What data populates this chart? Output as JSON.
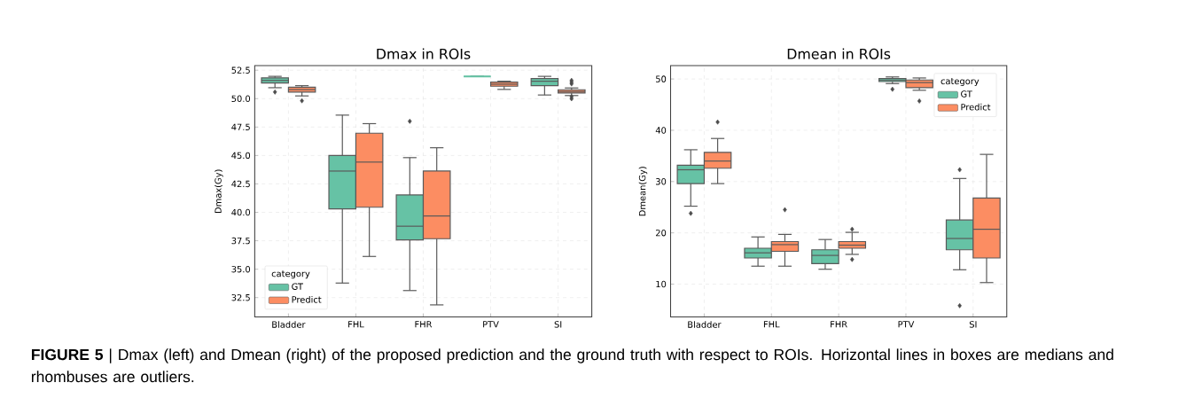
{
  "chart_data": [
    {
      "type": "box",
      "title": "Dmax in ROIs",
      "ylabel": "Dmax(Gy)",
      "categories": [
        "Bladder",
        "FHL",
        "FHR",
        "PTV",
        "SI"
      ],
      "ylim": [
        30.8,
        52.9
      ],
      "yticks": [
        32.5,
        {
          "value": 35,
          "label": "35.0"
        },
        37.5,
        {
          "value": 40,
          "label": "40.0"
        },
        42.5,
        {
          "value": 45,
          "label": "45.0"
        },
        47.5,
        {
          "value": 50,
          "label": "50.0"
        },
        52.5
      ],
      "grid": true,
      "legend": "bottom left",
      "legend_title": "category",
      "series": [
        {
          "name": "GT",
          "color": "#66c2a5",
          "boxes": [
            {
              "low": 50.96,
              "q1": 51.37,
              "median": 51.6,
              "q3": 51.83,
              "high": 51.96,
              "outliers": [
                50.58
              ]
            },
            {
              "low": 33.78,
              "q1": 40.3,
              "median": 43.63,
              "q3": 45.0,
              "high": 48.55
            },
            {
              "low": 33.12,
              "q1": 37.58,
              "median": 38.78,
              "q3": 41.53,
              "high": 44.81,
              "outliers": [
                48.01
              ]
            },
            {
              "low": 51.95,
              "q1": 51.95,
              "median": 51.95,
              "q3": 51.95,
              "high": 51.95
            },
            {
              "low": 50.32,
              "q1": 51.14,
              "median": 51.53,
              "q3": 51.76,
              "high": 51.96
            }
          ]
        },
        {
          "name": "Predict",
          "color": "#fc8d62",
          "boxes": [
            {
              "low": 50.24,
              "q1": 50.58,
              "median": 50.8,
              "q3": 51.01,
              "high": 51.14,
              "outliers": [
                49.81
              ]
            },
            {
              "low": 36.12,
              "q1": 40.45,
              "median": 44.42,
              "q3": 46.96,
              "high": 47.8
            },
            {
              "low": 31.86,
              "q1": 37.68,
              "median": 39.68,
              "q3": 43.63,
              "high": 45.68
            },
            {
              "low": 50.81,
              "q1": 51.09,
              "median": 51.27,
              "q3": 51.45,
              "high": 51.53
            },
            {
              "low": 50.27,
              "q1": 50.5,
              "median": 50.63,
              "q3": 50.78,
              "high": 50.94,
              "outliers": [
                51.6,
                51.45,
                51.3,
                50.17,
                49.99
              ]
            }
          ]
        }
      ]
    },
    {
      "type": "box",
      "title": "Dmean in ROIs",
      "ylabel": "Dmean(Gy)",
      "categories": [
        "Bladder",
        "FHL",
        "FHR",
        "PTV",
        "SI"
      ],
      "ylim": [
        3.6,
        52.6
      ],
      "yticks": [
        10,
        20,
        30,
        40,
        50
      ],
      "grid": true,
      "legend": "top right",
      "legend_title": "category",
      "annotations": [
        "**FIGURE 5** | Dmax (left) and Dmean (right) of the proposed prediction and the ground truth with respect to ROIs. Horizontal lines in boxes are medians and rhombuses are outliers."
      ],
      "series": [
        {
          "name": "GT",
          "color": "#66c2a5",
          "boxes": [
            {
              "low": 25.2,
              "q1": 29.6,
              "median": 32.3,
              "q3": 33.2,
              "high": 36.2,
              "outliers": [
                23.8
              ]
            },
            {
              "low": 13.5,
              "q1": 15.1,
              "median": 16.1,
              "q3": 17.0,
              "high": 19.2
            },
            {
              "low": 12.9,
              "q1": 14.0,
              "median": 15.6,
              "q3": 16.7,
              "high": 18.7
            },
            {
              "low": 49.1,
              "q1": 49.5,
              "median": 49.8,
              "q3": 50.1,
              "high": 50.4,
              "outliers": [
                48.0
              ]
            },
            {
              "low": 12.8,
              "q1": 16.7,
              "median": 18.9,
              "q3": 22.5,
              "high": 30.6,
              "outliers": [
                32.3,
                5.8
              ]
            }
          ]
        },
        {
          "name": "Predict",
          "color": "#fc8d62",
          "boxes": [
            {
              "low": 29.6,
              "q1": 32.6,
              "median": 34.0,
              "q3": 35.7,
              "high": 38.4,
              "outliers": [
                41.6
              ]
            },
            {
              "low": 13.5,
              "q1": 16.4,
              "median": 17.7,
              "q3": 18.3,
              "high": 19.7,
              "outliers": [
                24.5
              ]
            },
            {
              "low": 15.8,
              "q1": 17.0,
              "median": 17.6,
              "q3": 18.3,
              "high": 20.1,
              "outliers": [
                20.7,
                14.8
              ]
            },
            {
              "low": 47.8,
              "q1": 48.3,
              "median": 49.3,
              "q3": 49.8,
              "high": 50.2,
              "outliers": [
                45.7
              ]
            },
            {
              "low": 10.3,
              "q1": 15.1,
              "median": 20.7,
              "q3": 26.8,
              "high": 35.3
            }
          ]
        }
      ]
    }
  ]
}
